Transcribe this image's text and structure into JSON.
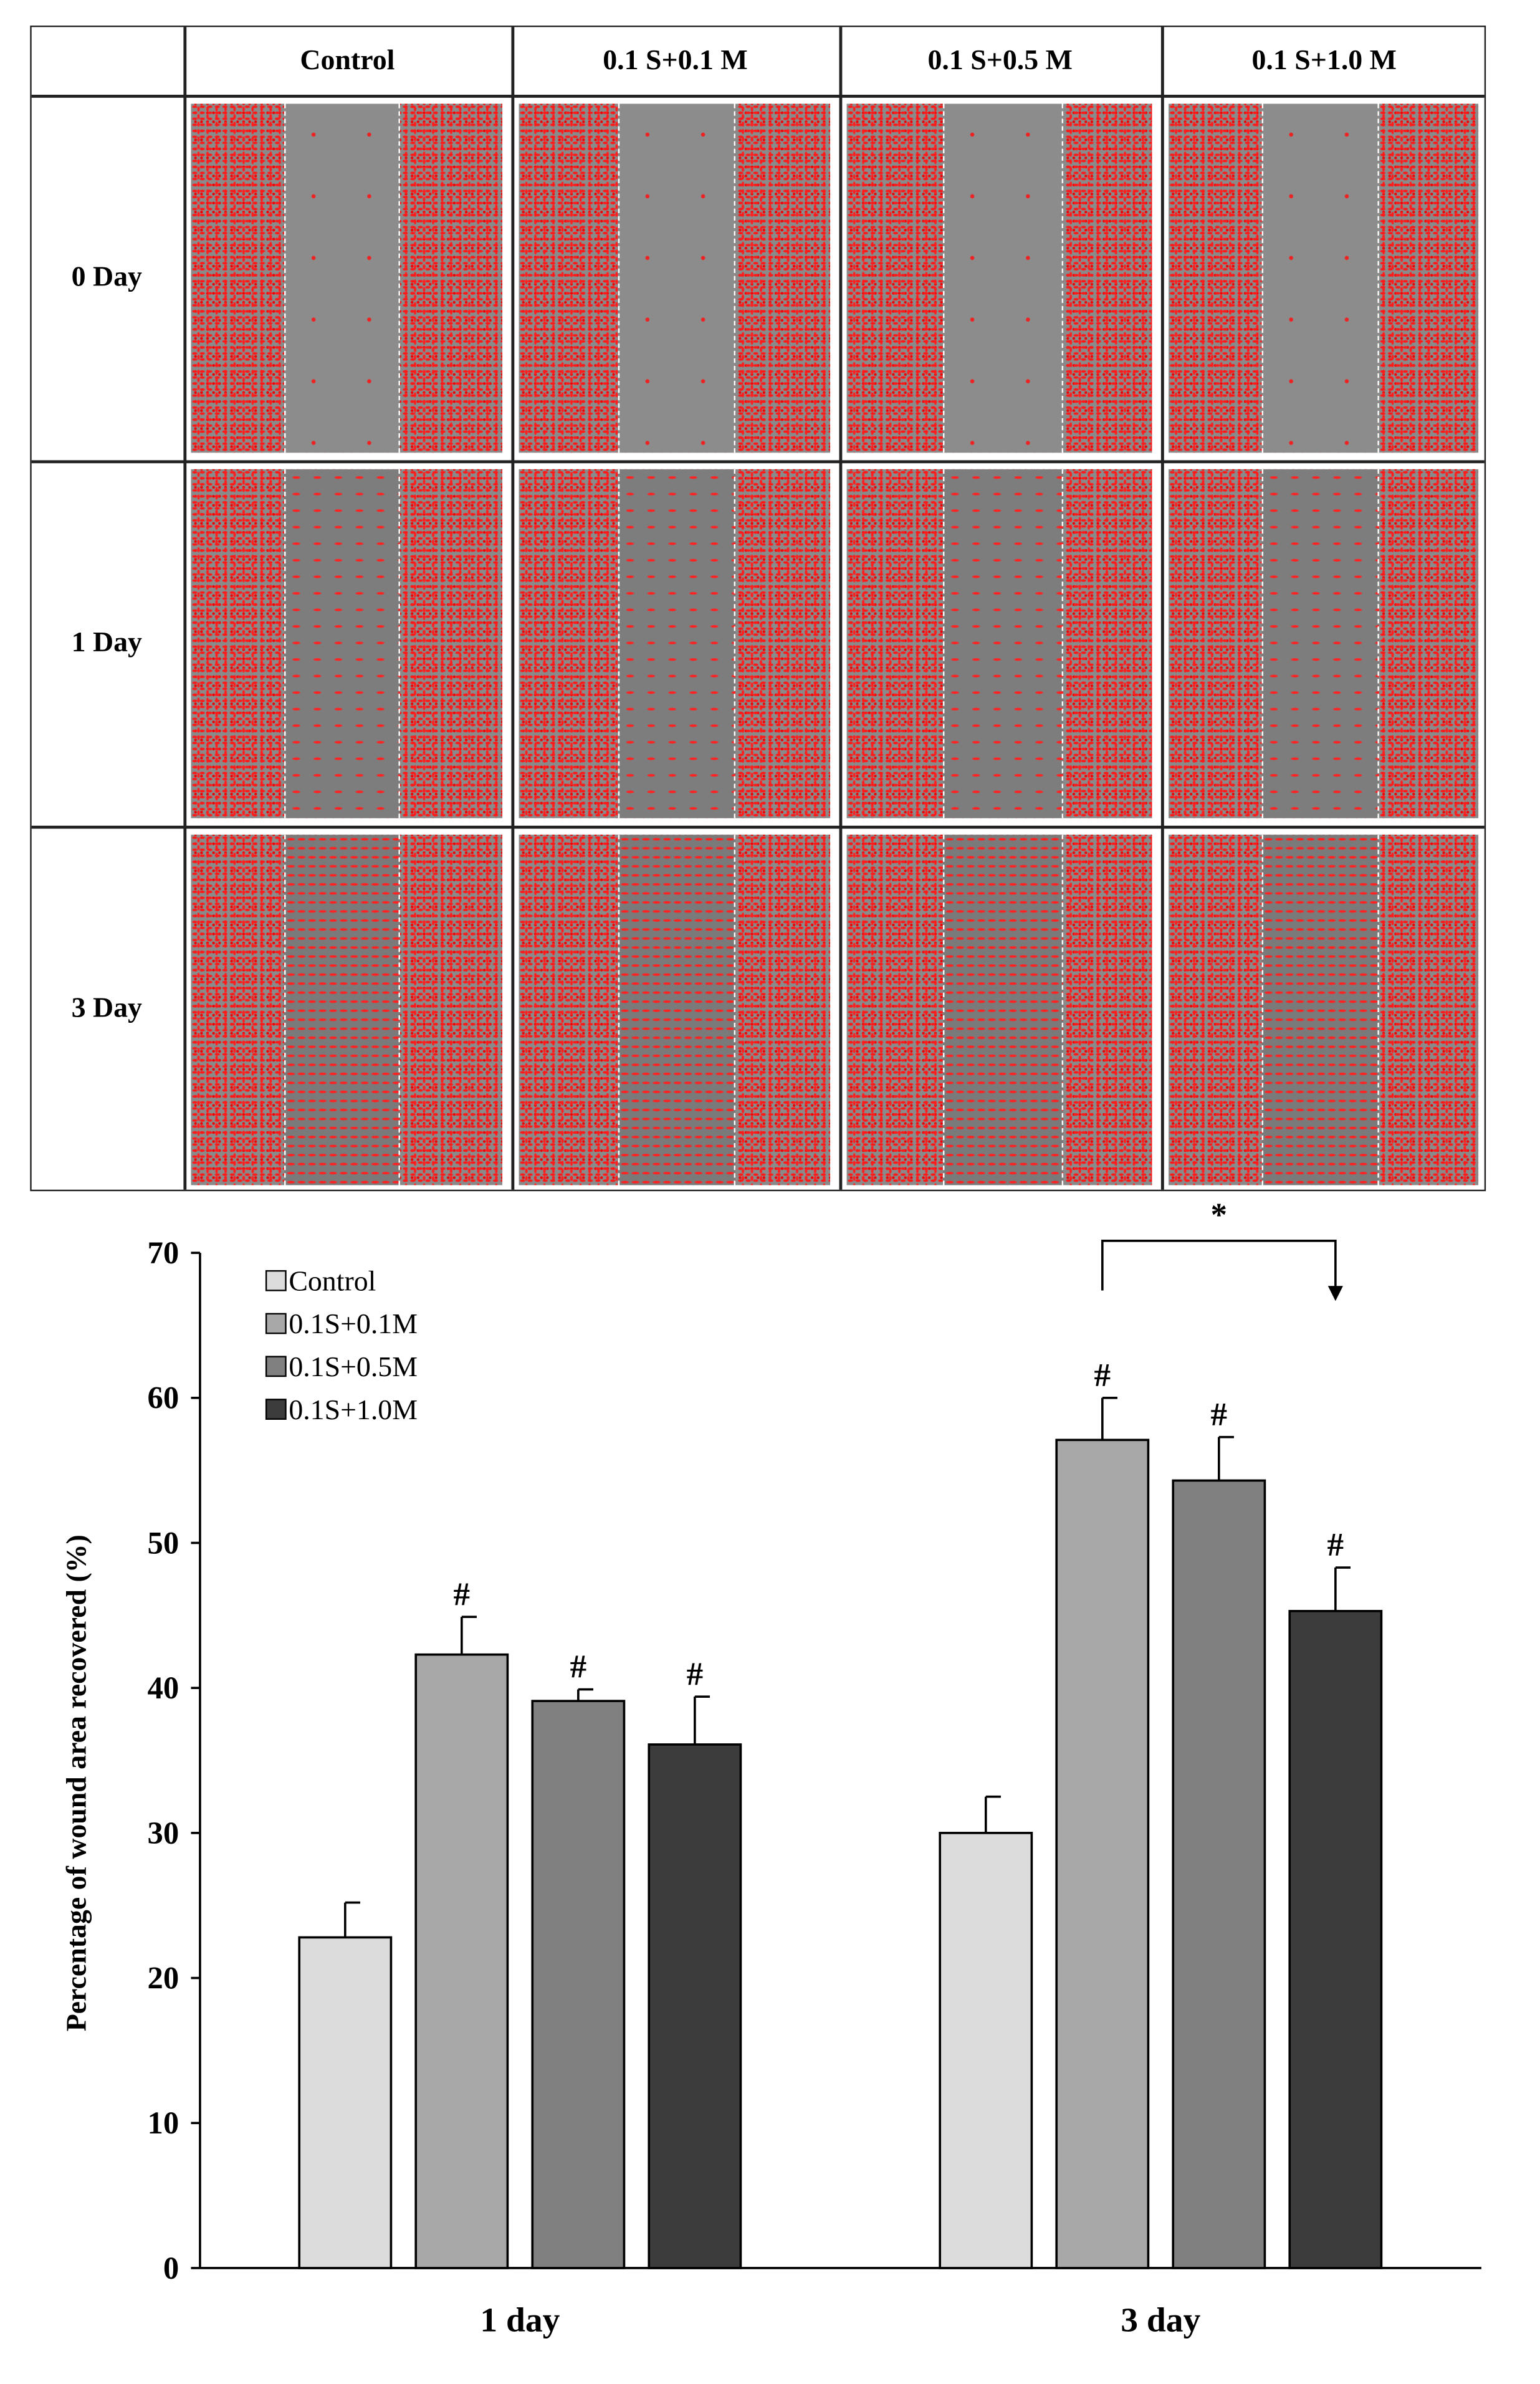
{
  "panel": {
    "columns": [
      "Control",
      "0.1 S+0.1 M",
      "0.1 S+0.5 M",
      "0.1 S+1.0 M"
    ],
    "rows": [
      "0 Day",
      "1 Day",
      "3 Day"
    ]
  },
  "colors": {
    "control": "#dcdcdc",
    "s01m01": "#a8a8a8",
    "s01m05": "#808080",
    "s01m10": "#3c3c3c",
    "cells": "#ff0000"
  },
  "chart_data": {
    "type": "bar",
    "categories": [
      "1 day",
      "3 day"
    ],
    "series": [
      {
        "name": "Control",
        "values": [
          22.8,
          30.0
        ],
        "errors": [
          2.4,
          2.5
        ],
        "marks": [
          "",
          ""
        ]
      },
      {
        "name": "0.1S+0.1M",
        "values": [
          42.3,
          57.1
        ],
        "errors": [
          2.6,
          2.9
        ],
        "marks": [
          "#",
          "#"
        ]
      },
      {
        "name": "0.1S+0.5M",
        "values": [
          39.1,
          54.3
        ],
        "errors": [
          0.8,
          3.0
        ],
        "marks": [
          "#",
          "#"
        ]
      },
      {
        "name": "0.1S+1.0M",
        "values": [
          36.1,
          45.3
        ],
        "errors": [
          3.3,
          3.0
        ],
        "marks": [
          "#",
          "#"
        ]
      }
    ],
    "ylabel": "Percentage of wound area recovered (%)",
    "xlabel": "",
    "ylim": [
      0,
      70
    ],
    "yticks": [
      0,
      10,
      20,
      30,
      40,
      50,
      60,
      70
    ],
    "legend": "top-left",
    "significance": {
      "label": "*",
      "from": "3 day 0.1S+0.1M",
      "to": "3 day 0.1S+1.0M"
    }
  }
}
